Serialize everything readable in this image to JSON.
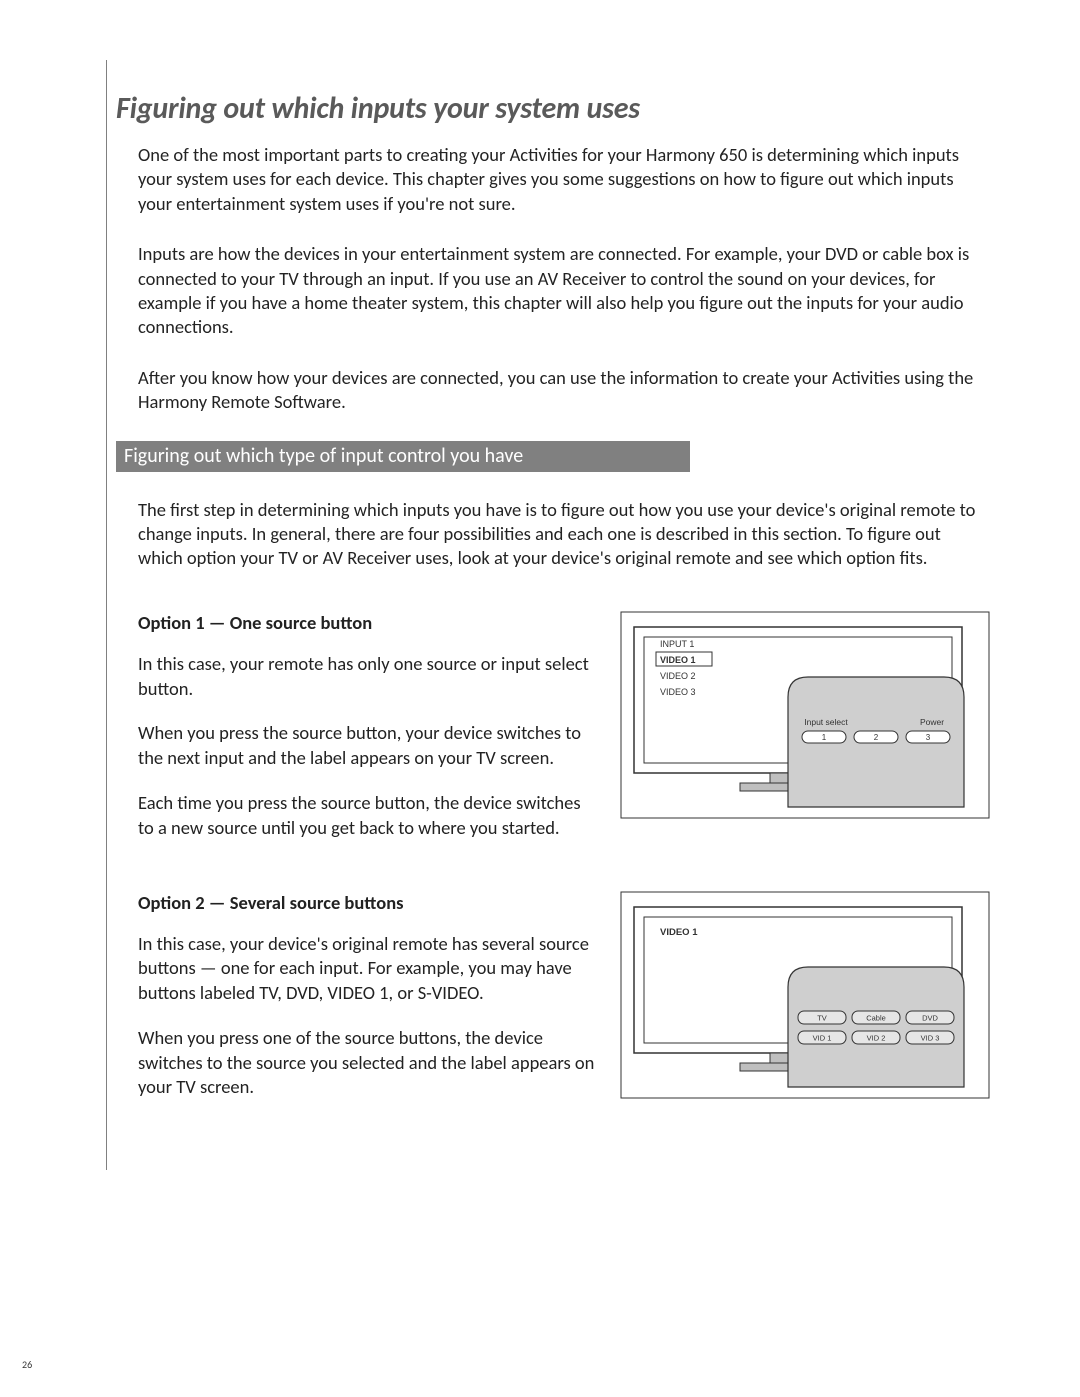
{
  "page_number": "26",
  "heading": "Figuring out which inputs your system uses",
  "intro_paragraphs": [
    "One of the most important parts to creating your Activities for your Harmony 650 is determining which inputs your system uses for each device. This chapter gives you some suggestions on how to figure out which inputs your entertainment system uses if you're not sure.",
    "Inputs are how the devices in your entertainment system are connected. For example, your DVD or cable box is connected to your TV through an input. If you use an AV Receiver to control the sound on your devices, for example if you have a home theater system, this chapter will also help you figure out the inputs for your audio connections.",
    "After you know how your devices are connected, you can use the information to create your Activities using the Harmony Remote Software."
  ],
  "section_bar": "Figuring out which type of input control you have",
  "section_intro": "The first step in determining which inputs you have is to figure out how you use your device's original remote to change inputs. In general, there are four possibilities and each one is described in this section. To figure out which option your TV or AV Receiver uses, look at your device's original remote and see which option fits.",
  "option1": {
    "title": "Option 1 — One source button",
    "paragraphs": [
      "In this case, your remote has only one source or input select button.",
      "When you press the source button, your device switches to the next input and the label appears on your TV screen.",
      "Each time you press the source button, the device switches to a new source until you get back to where you started."
    ],
    "figure": {
      "menu_items": [
        "INPUT 1",
        "VIDEO 1",
        "VIDEO 2",
        "VIDEO 3"
      ],
      "menu_selected_index": 1,
      "button_labels": {
        "left": "Input select",
        "right": "Power"
      },
      "number_buttons": [
        "1",
        "2",
        "3"
      ],
      "colors": {
        "outer_border": "#333333",
        "screen_fill": "#ffffff",
        "screen_border": "#333333",
        "remote_fill": "#cfcfcf",
        "remote_border": "#333333",
        "button_fill": "#ffffff",
        "text": "#333333",
        "selected_border": "#333333",
        "stand_fill": "#bfbfbf"
      }
    }
  },
  "option2": {
    "title": "Option 2 — Several source buttons",
    "paragraphs": [
      "In this case, your device's original remote has several source buttons — one for each input. For example, you may have buttons labeled TV, DVD, VIDEO 1, or S-VIDEO.",
      "When you press one of the source buttons, the device switches to the source you selected and the label appears on your TV screen."
    ],
    "figure": {
      "screen_label": "VIDEO 1",
      "row1_buttons": [
        "TV",
        "Cable",
        "DVD"
      ],
      "row2_buttons": [
        "VID 1",
        "VID 2",
        "VID 3"
      ],
      "colors": {
        "outer_border": "#333333",
        "screen_fill": "#ffffff",
        "screen_border": "#333333",
        "remote_fill": "#cfcfcf",
        "remote_border": "#333333",
        "button_fill": "#e6e6e6",
        "button_border": "#333333",
        "text": "#333333",
        "stand_fill": "#bfbfbf"
      }
    }
  }
}
